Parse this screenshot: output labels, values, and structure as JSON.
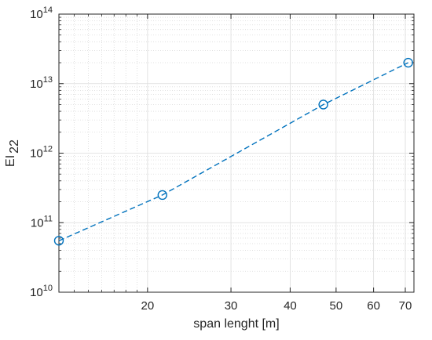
{
  "chart_data": {
    "type": "line",
    "x_scale": "log",
    "y_scale": "log",
    "x": [
      13,
      21.5,
      47,
      71
    ],
    "y": [
      55000000000.0,
      250000000000.0,
      5000000000000.0,
      20000000000000.0
    ],
    "xlim": [
      13,
      73
    ],
    "ylim": [
      10000000000.0,
      100000000000000.0
    ],
    "xticks": [
      {
        "value": 20,
        "label": "20"
      },
      {
        "value": 30,
        "label": "30"
      },
      {
        "value": 40,
        "label": "40"
      },
      {
        "value": 50,
        "label": "50"
      },
      {
        "value": 60,
        "label": "60"
      },
      {
        "value": 70,
        "label": "70"
      }
    ],
    "yticks": [
      {
        "value": 10000000000.0,
        "base": "10",
        "exp": "10"
      },
      {
        "value": 100000000000.0,
        "base": "10",
        "exp": "11"
      },
      {
        "value": 1000000000000.0,
        "base": "10",
        "exp": "12"
      },
      {
        "value": 10000000000000.0,
        "base": "10",
        "exp": "13"
      },
      {
        "value": 100000000000000.0,
        "base": "10",
        "exp": "14"
      }
    ],
    "xlabel": "span lenght [m]",
    "ylabel_main": "EI",
    "ylabel_sub": "22",
    "grid": true,
    "minor_grid": true,
    "line_style": "dashed",
    "marker": "circle",
    "color": "#0072BD"
  }
}
